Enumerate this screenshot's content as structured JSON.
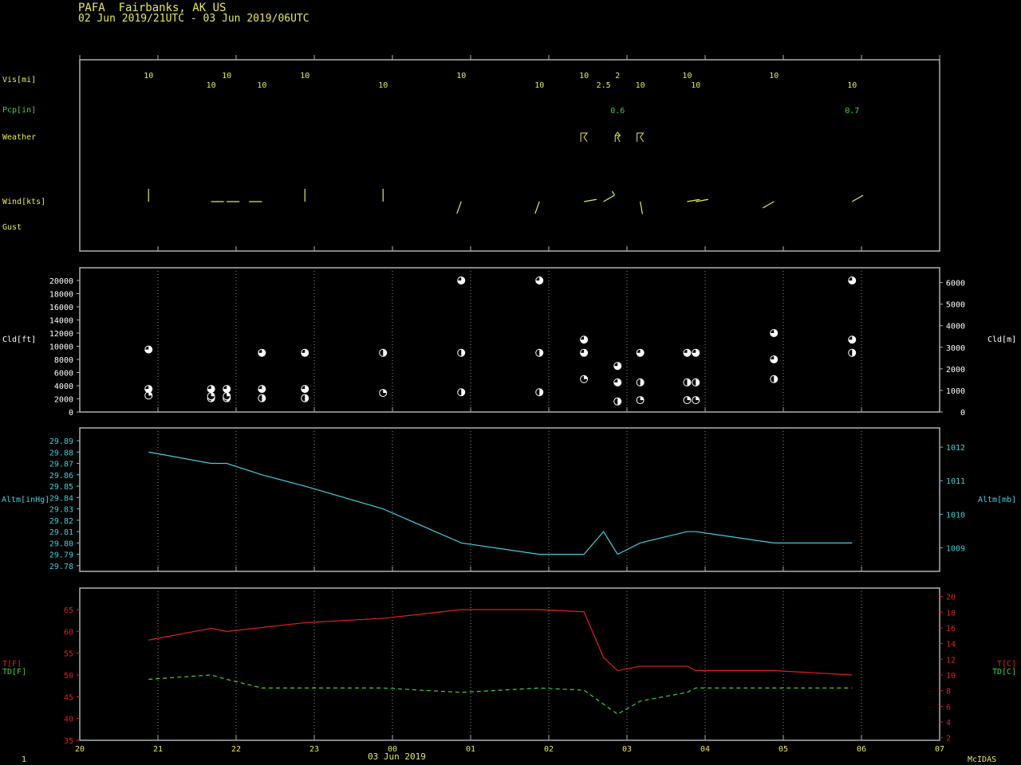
{
  "header": {
    "title": "PAFA  Fairbanks, AK US",
    "subtitle": "02 Jun 2019/21UTC - 03 Jun 2019/06UTC"
  },
  "footer": {
    "left": "1",
    "date": "03 Jun 2019",
    "right": "McIDAS"
  },
  "colors": {
    "yellow": "#e8e858",
    "green": "#40d040",
    "cyan": "#40d0d8",
    "red": "#e02020",
    "frame": "#b0b0b0",
    "grid": "#909090"
  },
  "labels": {
    "vis": "Vis[mi]",
    "pcp": "Pcp[in]",
    "weather": "Weather",
    "wind": "Wind[kts]",
    "gust": "Gust",
    "cld_ft": "Cld[ft]",
    "cld_m": "Cld[m]",
    "altm_inhg": "Altm[inHg]",
    "altm_mb": "Altm[mb]",
    "t_f": "T[F]",
    "td_f": "TD[F]",
    "t_c": "T[C]",
    "td_c": "TD[C]"
  },
  "chart_data": {
    "type": "meteogram",
    "x_ticks": [
      "20",
      "21",
      "22",
      "23",
      "00",
      "01",
      "02",
      "03",
      "04",
      "05",
      "06",
      "07"
    ],
    "x_range": [
      20,
      31
    ],
    "obs_times": [
      20.88,
      21.68,
      21.88,
      22.33,
      22.88,
      23.88,
      24.88,
      25.88,
      26.45,
      26.88,
      27.17,
      27.77,
      27.88,
      28.88,
      29.88
    ],
    "visibility": [
      {
        "t": 20.88,
        "value": "10",
        "row": 0
      },
      {
        "t": 21.68,
        "value": "10",
        "row": 1
      },
      {
        "t": 21.88,
        "value": "10",
        "row": 0
      },
      {
        "t": 22.33,
        "value": "10",
        "row": 1
      },
      {
        "t": 22.88,
        "value": "10",
        "row": 0
      },
      {
        "t": 23.88,
        "value": "10",
        "row": 1
      },
      {
        "t": 24.88,
        "value": "10",
        "row": 0
      },
      {
        "t": 25.88,
        "value": "10",
        "row": 1
      },
      {
        "t": 26.45,
        "value": "10",
        "row": 0
      },
      {
        "t": 26.7,
        "value": "2.5",
        "row": 1
      },
      {
        "t": 26.88,
        "value": "2",
        "row": 0
      },
      {
        "t": 27.17,
        "value": "10",
        "row": 1
      },
      {
        "t": 27.77,
        "value": "10",
        "row": 0
      },
      {
        "t": 27.88,
        "value": "10",
        "row": 1
      },
      {
        "t": 28.88,
        "value": "10",
        "row": 0
      },
      {
        "t": 29.88,
        "value": "10",
        "row": 1
      }
    ],
    "precip": [
      {
        "t": 26.88,
        "value": "0.6"
      },
      {
        "t": 29.88,
        "value": "0.7"
      }
    ],
    "weather": [
      {
        "t": 26.45,
        "value": "thunderstorm-icon"
      },
      {
        "t": 26.88,
        "value": "thunder-rain-icon"
      },
      {
        "t": 27.17,
        "value": "thunderstorm-icon"
      }
    ],
    "wind": [
      {
        "t": 20.88,
        "dir": 360,
        "kts": 5
      },
      {
        "t": 21.68,
        "dir": 90,
        "kts": 5
      },
      {
        "t": 21.88,
        "dir": 90,
        "kts": 5
      },
      {
        "t": 22.33,
        "dir": 270,
        "kts": 5
      },
      {
        "t": 22.88,
        "dir": 360,
        "kts": 5
      },
      {
        "t": 23.88,
        "dir": 360,
        "kts": 5
      },
      {
        "t": 24.88,
        "dir": 200,
        "kts": 5
      },
      {
        "t": 25.88,
        "dir": 200,
        "kts": 5
      },
      {
        "t": 26.45,
        "dir": 80,
        "kts": 5
      },
      {
        "t": 26.7,
        "dir": 60,
        "kts": 10
      },
      {
        "t": 27.17,
        "dir": 170,
        "kts": 5
      },
      {
        "t": 27.77,
        "dir": 80,
        "kts": 5
      },
      {
        "t": 27.88,
        "dir": 80,
        "kts": 5
      },
      {
        "t": 28.88,
        "dir": 240,
        "kts": 5
      },
      {
        "t": 29.88,
        "dir": 60,
        "kts": 5
      }
    ],
    "cloud_ft": {
      "yticks": [
        0,
        2000,
        4000,
        6000,
        8000,
        10000,
        12000,
        14000,
        16000,
        18000,
        20000
      ],
      "yticks_m": [
        0,
        1000,
        2000,
        3000,
        4000,
        5000,
        6000
      ],
      "layers": [
        {
          "t": 20.88,
          "ft": 2500,
          "cover": 1
        },
        {
          "t": 20.88,
          "ft": 3500,
          "cover": 3
        },
        {
          "t": 20.88,
          "ft": 9500,
          "cover": 3
        },
        {
          "t": 21.68,
          "ft": 2100,
          "cover": 2
        },
        {
          "t": 21.68,
          "ft": 2400,
          "cover": 1
        },
        {
          "t": 21.68,
          "ft": 3500,
          "cover": 3
        },
        {
          "t": 21.88,
          "ft": 2100,
          "cover": 2
        },
        {
          "t": 21.88,
          "ft": 2400,
          "cover": 1
        },
        {
          "t": 21.88,
          "ft": 3500,
          "cover": 3
        },
        {
          "t": 22.33,
          "ft": 2100,
          "cover": 2
        },
        {
          "t": 22.33,
          "ft": 3500,
          "cover": 3
        },
        {
          "t": 22.33,
          "ft": 9000,
          "cover": 3
        },
        {
          "t": 22.88,
          "ft": 2100,
          "cover": 2
        },
        {
          "t": 22.88,
          "ft": 3500,
          "cover": 3
        },
        {
          "t": 22.88,
          "ft": 9000,
          "cover": 3
        },
        {
          "t": 23.88,
          "ft": 2900,
          "cover": 1
        },
        {
          "t": 23.88,
          "ft": 9000,
          "cover": 2
        },
        {
          "t": 24.88,
          "ft": 3000,
          "cover": 2
        },
        {
          "t": 24.88,
          "ft": 9000,
          "cover": 2
        },
        {
          "t": 24.88,
          "ft": 20000,
          "cover": 3
        },
        {
          "t": 25.88,
          "ft": 3000,
          "cover": 2
        },
        {
          "t": 25.88,
          "ft": 9000,
          "cover": 2
        },
        {
          "t": 25.88,
          "ft": 20000,
          "cover": 3
        },
        {
          "t": 26.45,
          "ft": 5000,
          "cover": 1
        },
        {
          "t": 26.45,
          "ft": 9000,
          "cover": 3
        },
        {
          "t": 26.45,
          "ft": 11000,
          "cover": 3
        },
        {
          "t": 26.88,
          "ft": 1600,
          "cover": 2
        },
        {
          "t": 26.88,
          "ft": 4500,
          "cover": 3
        },
        {
          "t": 26.88,
          "ft": 7000,
          "cover": 3
        },
        {
          "t": 27.17,
          "ft": 1800,
          "cover": 1
        },
        {
          "t": 27.17,
          "ft": 4500,
          "cover": 2
        },
        {
          "t": 27.17,
          "ft": 9000,
          "cover": 3
        },
        {
          "t": 27.77,
          "ft": 1800,
          "cover": 1
        },
        {
          "t": 27.77,
          "ft": 4500,
          "cover": 2
        },
        {
          "t": 27.77,
          "ft": 9000,
          "cover": 3
        },
        {
          "t": 27.88,
          "ft": 1800,
          "cover": 1
        },
        {
          "t": 27.88,
          "ft": 4500,
          "cover": 2
        },
        {
          "t": 27.88,
          "ft": 9000,
          "cover": 3
        },
        {
          "t": 28.88,
          "ft": 5000,
          "cover": 2
        },
        {
          "t": 28.88,
          "ft": 8000,
          "cover": 3
        },
        {
          "t": 28.88,
          "ft": 12000,
          "cover": 3
        },
        {
          "t": 29.88,
          "ft": 9000,
          "cover": 2
        },
        {
          "t": 29.88,
          "ft": 11000,
          "cover": 3
        },
        {
          "t": 29.88,
          "ft": 20000,
          "cover": 3
        }
      ]
    },
    "altimeter": {
      "yticks": [
        "29.78",
        "29.79",
        "29.80",
        "29.81",
        "29.82",
        "29.83",
        "29.84",
        "29.85",
        "29.86",
        "29.87",
        "29.88",
        "29.89"
      ],
      "yticks_mb": [
        "1009",
        "1010",
        "1011",
        "1012"
      ],
      "points": [
        [
          20.88,
          29.88
        ],
        [
          21.68,
          29.87
        ],
        [
          21.88,
          29.87
        ],
        [
          22.33,
          29.86
        ],
        [
          22.88,
          29.85
        ],
        [
          23.88,
          29.83
        ],
        [
          24.88,
          29.8
        ],
        [
          25.88,
          29.79
        ],
        [
          26.45,
          29.79
        ],
        [
          26.7,
          29.81
        ],
        [
          26.88,
          29.79
        ],
        [
          27.17,
          29.8
        ],
        [
          27.77,
          29.81
        ],
        [
          27.88,
          29.81
        ],
        [
          28.88,
          29.8
        ],
        [
          29.88,
          29.8
        ]
      ]
    },
    "temperature": {
      "yticks_f": [
        "35",
        "40",
        "45",
        "50",
        "55",
        "60",
        "65"
      ],
      "yticks_c": [
        "2",
        "4",
        "6",
        "8",
        "10",
        "12",
        "14",
        "16",
        "18",
        "20"
      ],
      "temp_f": [
        [
          20.88,
          58
        ],
        [
          21.68,
          60.7
        ],
        [
          21.88,
          60
        ],
        [
          22.88,
          62
        ],
        [
          23.88,
          63
        ],
        [
          24.88,
          65
        ],
        [
          25.88,
          65
        ],
        [
          26.45,
          64.5
        ],
        [
          26.7,
          54
        ],
        [
          26.88,
          51
        ],
        [
          27.17,
          52
        ],
        [
          27.77,
          52
        ],
        [
          27.88,
          51
        ],
        [
          28.88,
          51
        ],
        [
          29.88,
          50
        ]
      ],
      "dewpoint_f": [
        [
          20.88,
          49
        ],
        [
          21.68,
          50
        ],
        [
          21.88,
          49
        ],
        [
          22.33,
          47
        ],
        [
          22.88,
          47
        ],
        [
          23.88,
          47
        ],
        [
          24.88,
          46
        ],
        [
          25.88,
          47
        ],
        [
          26.45,
          46.5
        ],
        [
          26.88,
          41
        ],
        [
          27.17,
          44
        ],
        [
          27.77,
          46
        ],
        [
          27.88,
          47
        ],
        [
          28.88,
          47
        ],
        [
          29.88,
          47
        ]
      ]
    }
  }
}
